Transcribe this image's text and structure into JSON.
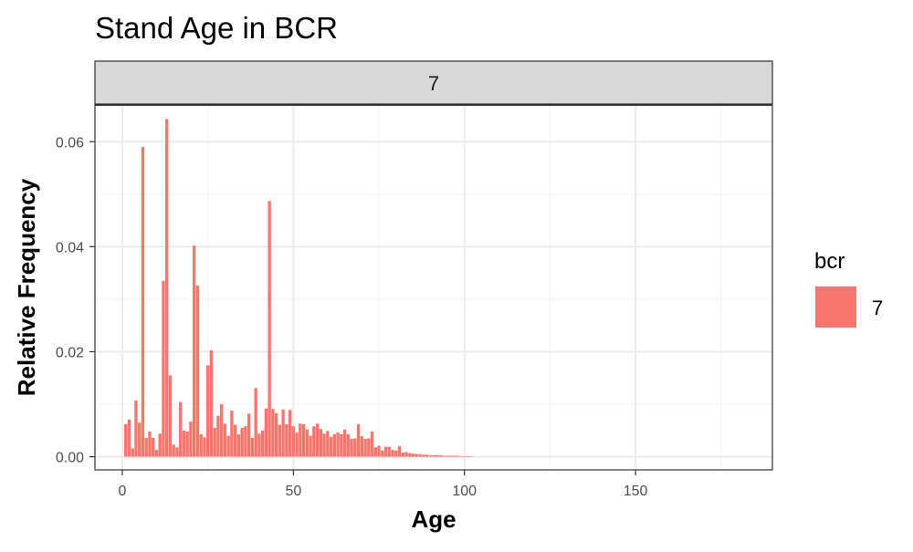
{
  "chart_data": {
    "type": "bar",
    "title": "Stand Age in BCR",
    "facet_label": "7",
    "xlabel": "Age",
    "ylabel": "Relative Frequency",
    "xlim": [
      -8,
      190
    ],
    "ylim": [
      -0.0025,
      0.067
    ],
    "x_ticks": [
      0,
      50,
      100,
      150
    ],
    "y_ticks": [
      0.0,
      0.02,
      0.04,
      0.06
    ],
    "y_tick_labels": [
      "0.00",
      "0.02",
      "0.04",
      "0.06"
    ],
    "grid": true,
    "bar_color": "#F8766D",
    "legend": {
      "title": "bcr",
      "entries": [
        "7"
      ],
      "position": "right"
    },
    "x": [
      1,
      2,
      3,
      4,
      5,
      6,
      7,
      8,
      9,
      10,
      11,
      12,
      13,
      14,
      15,
      16,
      17,
      18,
      19,
      20,
      21,
      22,
      23,
      24,
      25,
      26,
      27,
      28,
      29,
      30,
      31,
      32,
      33,
      34,
      35,
      36,
      37,
      38,
      39,
      40,
      41,
      42,
      43,
      44,
      45,
      46,
      47,
      48,
      49,
      50,
      51,
      52,
      53,
      54,
      55,
      56,
      57,
      58,
      59,
      60,
      61,
      62,
      63,
      64,
      65,
      66,
      67,
      68,
      69,
      70,
      71,
      72,
      73,
      74,
      75,
      76,
      77,
      78,
      79,
      80,
      81,
      82,
      83,
      84,
      85,
      86,
      87,
      88,
      89,
      90,
      91,
      92,
      93,
      94,
      95,
      96,
      97,
      98,
      99,
      100,
      101,
      102
    ],
    "values": [
      0.0062,
      0.0071,
      0.0016,
      0.0107,
      0.0065,
      0.059,
      0.0036,
      0.0048,
      0.0036,
      0.0013,
      0.0044,
      0.0335,
      0.0643,
      0.0155,
      0.0023,
      0.0018,
      0.0104,
      0.005,
      0.0048,
      0.0067,
      0.0402,
      0.0326,
      0.0043,
      0.0037,
      0.0174,
      0.0203,
      0.0055,
      0.0078,
      0.01,
      0.0063,
      0.004,
      0.0088,
      0.0061,
      0.0043,
      0.0055,
      0.0058,
      0.0082,
      0.0036,
      0.0131,
      0.0044,
      0.005,
      0.0092,
      0.0487,
      0.0091,
      0.0083,
      0.0061,
      0.009,
      0.0062,
      0.0089,
      0.0058,
      0.0046,
      0.0063,
      0.0062,
      0.0052,
      0.004,
      0.0058,
      0.0063,
      0.0053,
      0.0044,
      0.0049,
      0.0038,
      0.0043,
      0.0046,
      0.0043,
      0.0052,
      0.0043,
      0.0034,
      0.0035,
      0.0062,
      0.0039,
      0.0034,
      0.0035,
      0.0048,
      0.0018,
      0.0021,
      0.0012,
      0.0019,
      0.0019,
      0.0013,
      0.0012,
      0.002,
      0.0008,
      0.0009,
      0.0007,
      0.0006,
      0.0005,
      0.0005,
      0.0004,
      0.0004,
      0.0003,
      0.0003,
      0.0003,
      0.0003,
      0.0002,
      0.0002,
      0.0002,
      0.0002,
      0.0002,
      0.0001,
      0.0001,
      0.0001,
      0.0001
    ]
  }
}
